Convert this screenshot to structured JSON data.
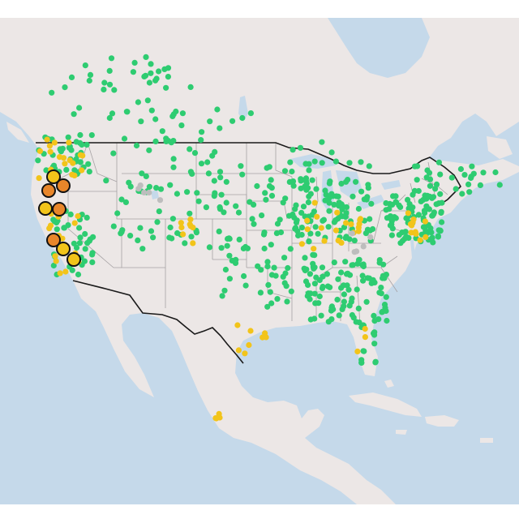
{
  "map": {
    "colors": {
      "background": "#ffffff",
      "ocean": "#c5d9ea",
      "land": "#ece7e6",
      "state_border": "#a6a2a4",
      "country_border": "#1a1a1a",
      "good": "#2ecc71",
      "moderate": "#f2c41a",
      "unhealthy_sensitive": "#e8862a",
      "no_data": "#bdbdbd",
      "marker_outline": "#111111"
    },
    "legend": null
  }
}
